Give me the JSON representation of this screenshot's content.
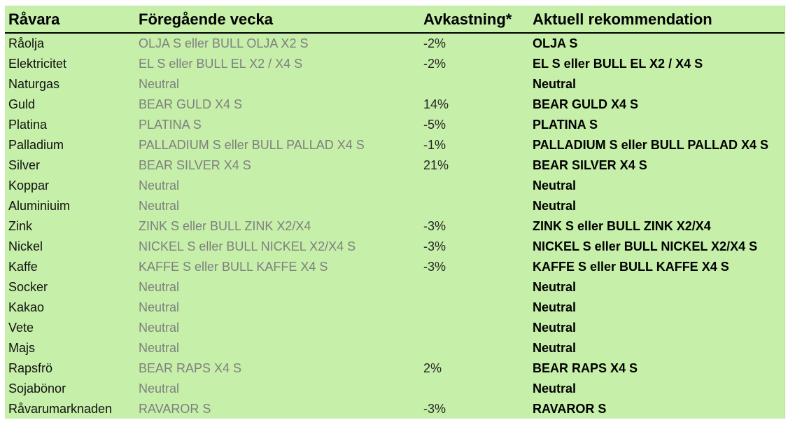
{
  "header": {
    "col1": "Råvara",
    "col2": "Föregående vecka",
    "col3": "Avkastning*",
    "col4": "Aktuell rekommendation"
  },
  "rows": [
    {
      "ravara": "Råolja",
      "prev": "OLJA S eller BULL OLJA X2 S",
      "ret": "-2%",
      "rec": "OLJA S"
    },
    {
      "ravara": "Elektricitet",
      "prev": "EL S eller BULL EL X2 / X4 S",
      "ret": "-2%",
      "rec": "EL S eller BULL EL X2 / X4 S"
    },
    {
      "ravara": "Naturgas",
      "prev": "Neutral",
      "ret": "",
      "rec": "Neutral"
    },
    {
      "ravara": "Guld",
      "prev": "BEAR GULD X4 S",
      "ret": "14%",
      "rec": "BEAR GULD X4 S"
    },
    {
      "ravara": "Platina",
      "prev": "PLATINA S",
      "ret": "-5%",
      "rec": "PLATINA S"
    },
    {
      "ravara": "Palladium",
      "prev": "PALLADIUM S eller BULL PALLAD X4 S",
      "ret": "-1%",
      "rec": "PALLADIUM S eller BULL PALLAD X4 S"
    },
    {
      "ravara": "Silver",
      "prev": "BEAR SILVER X4 S",
      "ret": "21%",
      "rec": "BEAR SILVER X4 S"
    },
    {
      "ravara": "Koppar",
      "prev": "Neutral",
      "ret": "",
      "rec": "Neutral"
    },
    {
      "ravara": "Aluminiuim",
      "prev": "Neutral",
      "ret": "",
      "rec": "Neutral"
    },
    {
      "ravara": "Zink",
      "prev": "ZINK S eller BULL ZINK X2/X4",
      "ret": "-3%",
      "rec": "ZINK S eller BULL ZINK X2/X4"
    },
    {
      "ravara": "Nickel",
      "prev": "NICKEL S eller BULL NICKEL X2/X4 S",
      "ret": "-3%",
      "rec": "NICKEL S eller BULL NICKEL X2/X4 S"
    },
    {
      "ravara": "Kaffe",
      "prev": "KAFFE S eller BULL KAFFE X4 S",
      "ret": "-3%",
      "rec": "KAFFE S eller BULL KAFFE X4 S"
    },
    {
      "ravara": "Socker",
      "prev": "Neutral",
      "ret": "",
      "rec": "Neutral"
    },
    {
      "ravara": "Kakao",
      "prev": "Neutral",
      "ret": "",
      "rec": "Neutral"
    },
    {
      "ravara": "Vete",
      "prev": "Neutral",
      "ret": "",
      "rec": "Neutral"
    },
    {
      "ravara": "Majs",
      "prev": "Neutral",
      "ret": "",
      "rec": "Neutral"
    },
    {
      "ravara": "Rapsfrö",
      "prev": "BEAR RAPS X4 S",
      "ret": "2%",
      "rec": "BEAR RAPS X4 S"
    },
    {
      "ravara": "Sojabönor",
      "prev": "Neutral",
      "ret": "",
      "rec": "Neutral"
    },
    {
      "ravara": "Råvarumarknaden",
      "prev": "RAVAROR S",
      "ret": "-3%",
      "rec": "RAVAROR S"
    }
  ]
}
